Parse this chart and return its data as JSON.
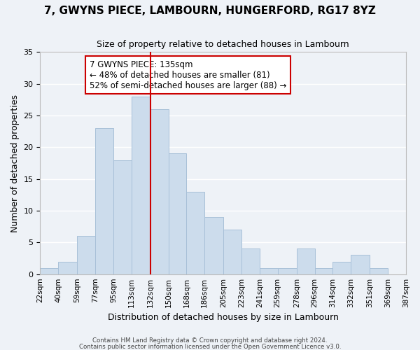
{
  "title": "7, GWYNS PIECE, LAMBOURN, HUNGERFORD, RG17 8YZ",
  "subtitle": "Size of property relative to detached houses in Lambourn",
  "xlabel": "Distribution of detached houses by size in Lambourn",
  "ylabel": "Number of detached properties",
  "bar_color": "#ccdcec",
  "bar_edge_color": "#a8c0d8",
  "background_color": "#eef2f7",
  "grid_color": "#ffffff",
  "bin_edges": [
    22,
    40,
    59,
    77,
    95,
    113,
    132,
    150,
    168,
    186,
    205,
    223,
    241,
    259,
    278,
    296,
    314,
    332,
    351,
    369,
    387
  ],
  "tick_labels": [
    "22sqm",
    "40sqm",
    "59sqm",
    "77sqm",
    "95sqm",
    "113sqm",
    "132sqm",
    "150sqm",
    "168sqm",
    "186sqm",
    "205sqm",
    "223sqm",
    "241sqm",
    "259sqm",
    "278sqm",
    "296sqm",
    "314sqm",
    "332sqm",
    "351sqm",
    "369sqm",
    "387sqm"
  ],
  "bar_heights": [
    1,
    2,
    6,
    23,
    18,
    28,
    26,
    19,
    13,
    9,
    7,
    4,
    1,
    1,
    4,
    1,
    2,
    3,
    1,
    0
  ],
  "ylim": [
    0,
    35
  ],
  "yticks": [
    0,
    5,
    10,
    15,
    20,
    25,
    30,
    35
  ],
  "property_line_color": "#cc0000",
  "property_line_value": 135,
  "annotation_title": "7 GWYNS PIECE: 135sqm",
  "annotation_line1": "← 48% of detached houses are smaller (81)",
  "annotation_line2": "52% of semi-detached houses are larger (88) →",
  "annotation_box_edge": "#cc0000",
  "footnote1": "Contains HM Land Registry data © Crown copyright and database right 2024.",
  "footnote2": "Contains public sector information licensed under the Open Government Licence v3.0."
}
